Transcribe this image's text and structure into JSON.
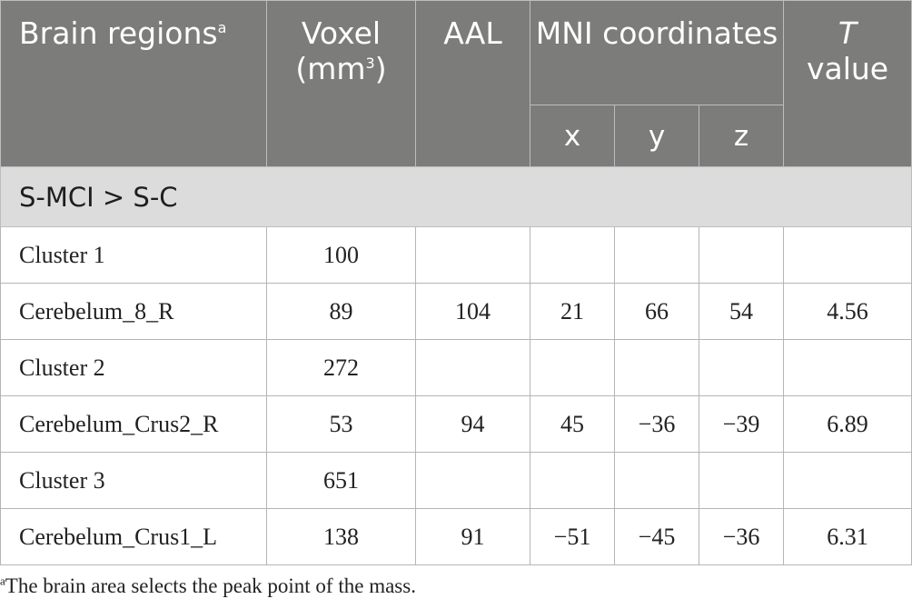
{
  "header": {
    "brain_regions": "Brain regions",
    "brain_regions_sup": "a",
    "voxel_line1": "Voxel",
    "voxel_line2_pre": "(mm",
    "voxel_sup": "3",
    "voxel_line2_post": ")",
    "aal": "AAL",
    "mni": "MNI coordinates",
    "x": "x",
    "y": "y",
    "z": "z",
    "t_italic": "T",
    "t_value": "value"
  },
  "section_label": "S-MCI > S-C",
  "rows": [
    {
      "region": "Cluster 1",
      "voxel": "100",
      "aal": "",
      "x": "",
      "y": "",
      "z": "",
      "t": ""
    },
    {
      "region": "Cerebelum_8_R",
      "voxel": "89",
      "aal": "104",
      "x": "21",
      "y": "66",
      "z": "54",
      "t": "4.56"
    },
    {
      "region": "Cluster 2",
      "voxel": "272",
      "aal": "",
      "x": "",
      "y": "",
      "z": "",
      "t": ""
    },
    {
      "region": "Cerebelum_Crus2_R",
      "voxel": "53",
      "aal": "94",
      "x": "45",
      "y": "−36",
      "z": "−39",
      "t": "6.89"
    },
    {
      "region": "Cluster 3",
      "voxel": "651",
      "aal": "",
      "x": "",
      "y": "",
      "z": "",
      "t": ""
    },
    {
      "region": "Cerebelum_Crus1_L",
      "voxel": "138",
      "aal": "91",
      "x": "−51",
      "y": "−45",
      "z": "−36",
      "t": "6.31"
    }
  ],
  "footnote": {
    "marker": "a",
    "text": "The brain area selects the peak point of the mass."
  }
}
